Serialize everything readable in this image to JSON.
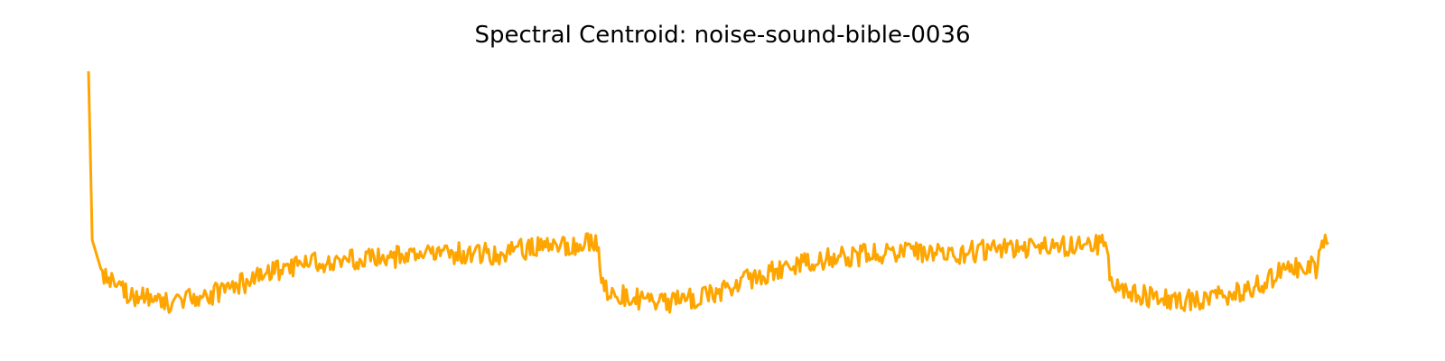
{
  "chart_data": {
    "type": "line",
    "title": "Spectral Centroid: noise-sound-bible-0036",
    "xlabel": "",
    "ylabel": "",
    "axes_visible": false,
    "grid": false,
    "line_color": "#FFA500",
    "xlim": [
      0,
      100
    ],
    "ylim": [
      0,
      100
    ],
    "x": [
      0,
      0.3,
      1,
      2,
      3,
      5,
      7,
      9,
      11,
      13,
      15,
      17,
      19,
      21,
      23,
      25,
      27,
      29,
      31,
      33,
      35,
      37,
      39,
      40.9,
      41.6,
      43,
      45,
      47,
      49,
      51,
      53,
      55,
      57,
      59,
      61,
      63,
      65,
      67,
      69,
      71,
      73,
      75,
      77,
      79,
      81,
      82,
      82.6,
      84,
      86,
      88,
      90,
      92,
      94,
      95,
      96,
      97,
      98,
      99,
      99.6,
      100
    ],
    "y": [
      100,
      30,
      18,
      12,
      8,
      5,
      4,
      6,
      9,
      13,
      17,
      19,
      21,
      22,
      23,
      23,
      24,
      24,
      25,
      24,
      26,
      27,
      28,
      29,
      10,
      7,
      5,
      4,
      6,
      9,
      13,
      17,
      20,
      22,
      23,
      24,
      24,
      25,
      24,
      25,
      26,
      27,
      27,
      28,
      28,
      29,
      10,
      8,
      6,
      5,
      5,
      7,
      10,
      13,
      16,
      18,
      20,
      18,
      29,
      29
    ]
  }
}
